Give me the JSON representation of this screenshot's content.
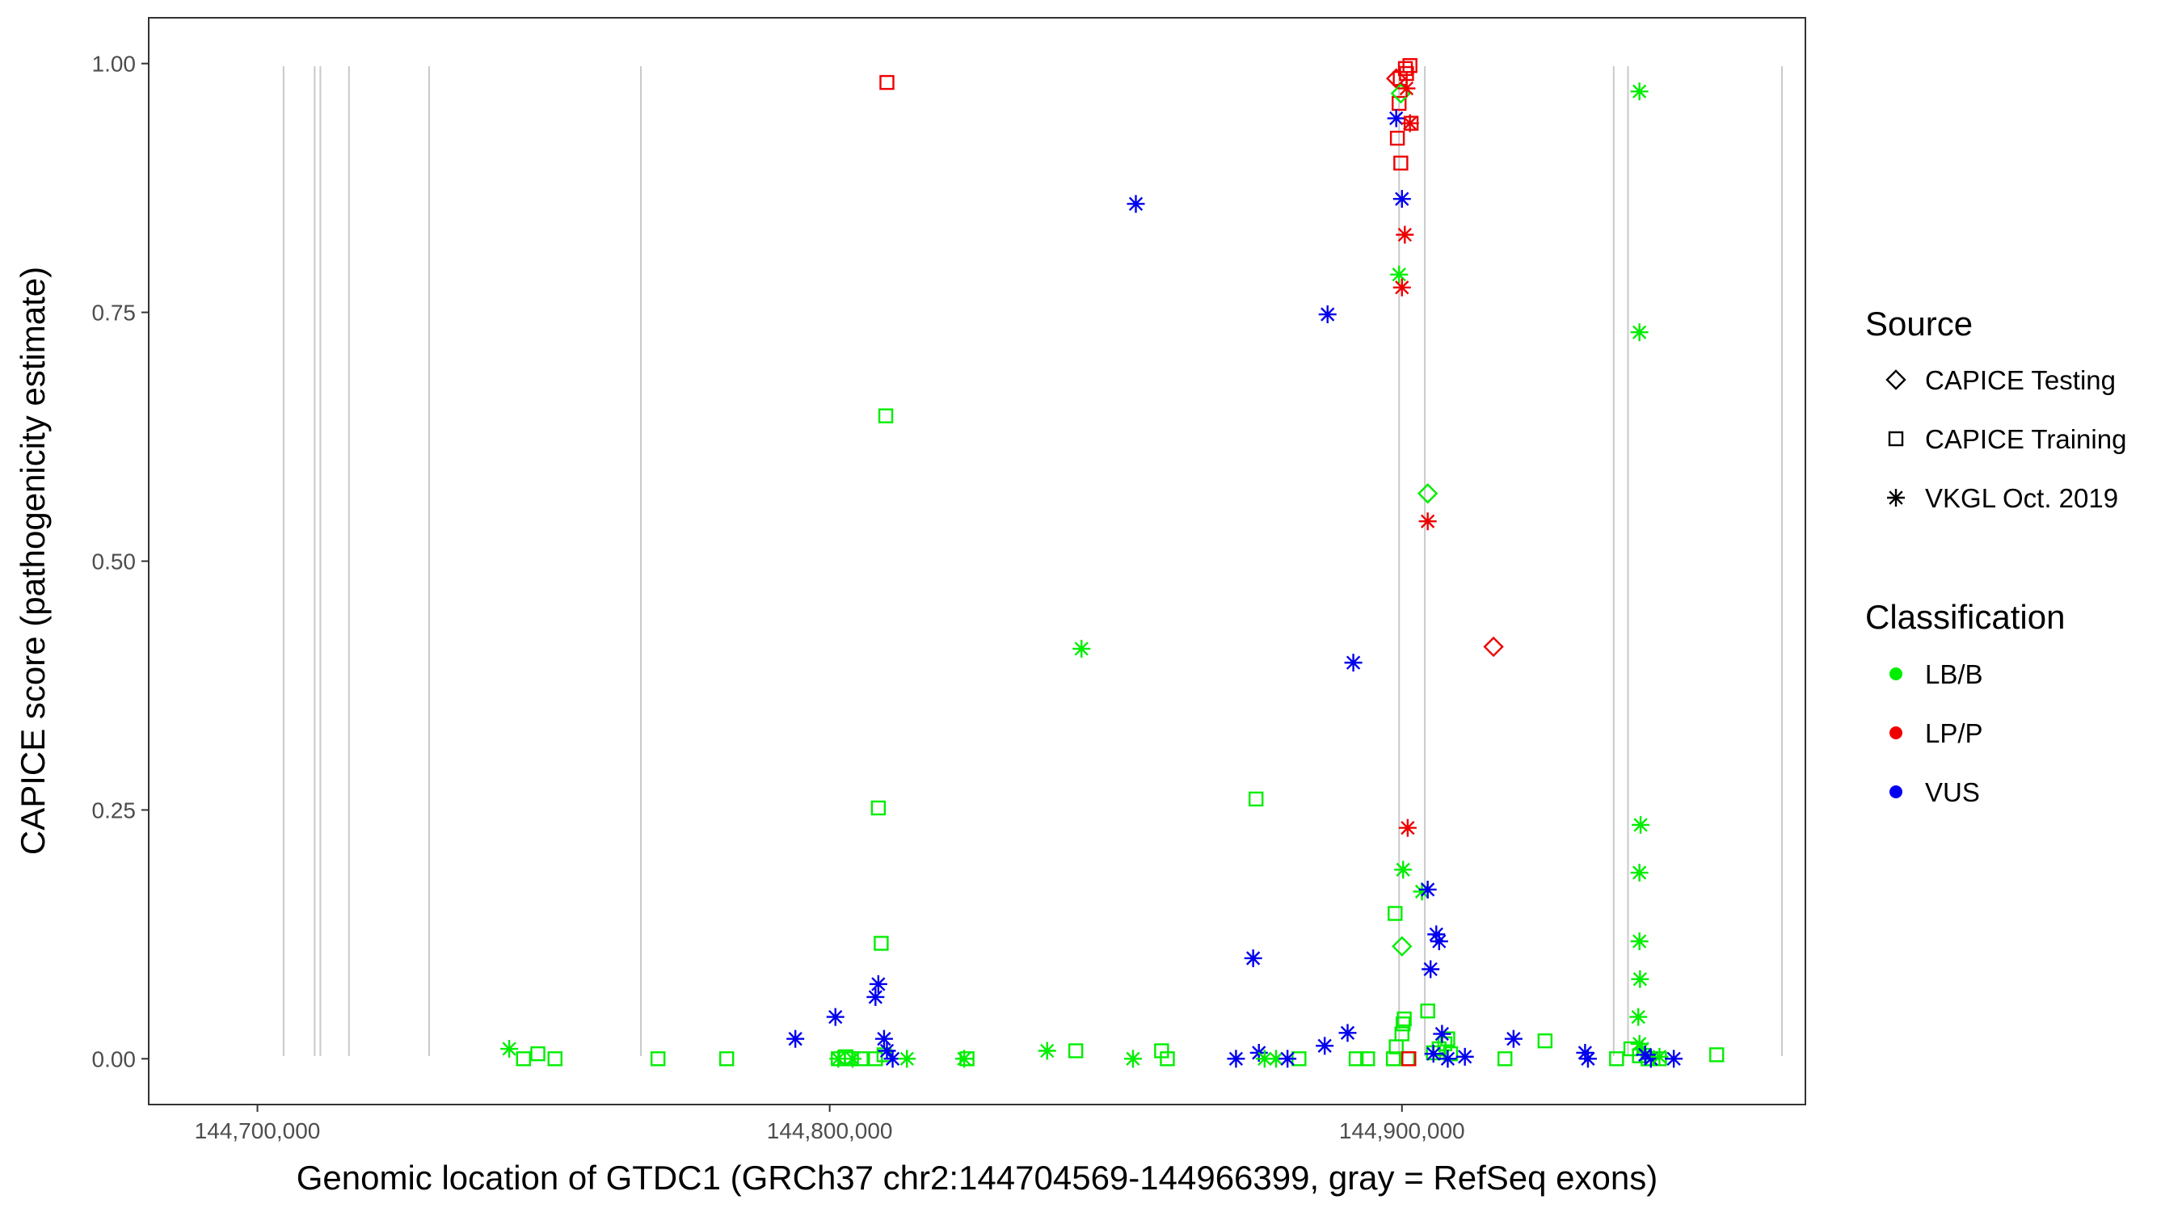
{
  "chart_data": {
    "type": "scatter",
    "title": "",
    "xlabel": "Genomic location of GTDC1 (GRCh37 chr2:144704569-144966399, gray = RefSeq exons)",
    "ylabel": "CAPICE score (pathogenicity estimate)",
    "xlim": [
      144681000,
      144970500
    ],
    "ylim": [
      -0.046,
      1.046
    ],
    "x_ticks": [
      {
        "value": 144700000,
        "label": "144,700,000"
      },
      {
        "value": 144800000,
        "label": "144,800,000"
      },
      {
        "value": 144900000,
        "label": "144,900,000"
      }
    ],
    "y_ticks": [
      {
        "value": 0.0,
        "label": "0.00"
      },
      {
        "value": 0.25,
        "label": "0.25"
      },
      {
        "value": 0.5,
        "label": "0.50"
      },
      {
        "value": 0.75,
        "label": "0.75"
      },
      {
        "value": 1.0,
        "label": "1.00"
      }
    ],
    "grid": false,
    "exons": [
      144704569,
      144710000,
      144711000,
      144716000,
      144730000,
      144767000,
      144899500,
      144904000,
      144937000,
      144939500,
      144966399
    ],
    "legend_position": "right",
    "legend": {
      "source": {
        "title": "Source",
        "entries": [
          {
            "key": "testing",
            "label": "CAPICE Testing",
            "shape": "diamond"
          },
          {
            "key": "training",
            "label": "CAPICE Training",
            "shape": "square"
          },
          {
            "key": "vkgl",
            "label": "VKGL Oct. 2019",
            "shape": "asterisk"
          }
        ]
      },
      "classification": {
        "title": "Classification",
        "entries": [
          {
            "key": "LB/B",
            "label": "LB/B",
            "color": "#00ee00"
          },
          {
            "key": "LP/P",
            "label": "LP/P",
            "color": "#ee0000"
          },
          {
            "key": "VUS",
            "label": "VUS",
            "color": "#0000ee"
          }
        ]
      }
    },
    "series": [
      {
        "name": "CAPICE Training",
        "shape": "square",
        "points": [
          {
            "x": 144746500,
            "y": 0.0,
            "c": "LB/B"
          },
          {
            "x": 144749000,
            "y": 0.005,
            "c": "LB/B"
          },
          {
            "x": 144752000,
            "y": 0.0,
            "c": "LB/B"
          },
          {
            "x": 144770000,
            "y": 0.0,
            "c": "LB/B"
          },
          {
            "x": 144782000,
            "y": 0.0,
            "c": "LB/B"
          },
          {
            "x": 144801500,
            "y": 0.0,
            "c": "LB/B"
          },
          {
            "x": 144802800,
            "y": 0.002,
            "c": "LB/B"
          },
          {
            "x": 144803800,
            "y": 0.0,
            "c": "LB/B"
          },
          {
            "x": 144805500,
            "y": 0.0,
            "c": "LB/B"
          },
          {
            "x": 144808000,
            "y": 0.0,
            "c": "LB/B"
          },
          {
            "x": 144808500,
            "y": 0.252,
            "c": "LB/B"
          },
          {
            "x": 144809000,
            "y": 0.116,
            "c": "LB/B"
          },
          {
            "x": 144809500,
            "y": 0.004,
            "c": "LB/B"
          },
          {
            "x": 144809800,
            "y": 0.646,
            "c": "LB/B"
          },
          {
            "x": 144810000,
            "y": 0.981,
            "c": "LP/P"
          },
          {
            "x": 144824000,
            "y": 0.0,
            "c": "LB/B"
          },
          {
            "x": 144843000,
            "y": 0.008,
            "c": "LB/B"
          },
          {
            "x": 144858000,
            "y": 0.008,
            "c": "LB/B"
          },
          {
            "x": 144859000,
            "y": 0.0,
            "c": "LB/B"
          },
          {
            "x": 144874500,
            "y": 0.261,
            "c": "LB/B"
          },
          {
            "x": 144882000,
            "y": 0.0,
            "c": "LB/B"
          },
          {
            "x": 144892000,
            "y": 0.0,
            "c": "LB/B"
          },
          {
            "x": 144894000,
            "y": 0.0,
            "c": "LB/B"
          },
          {
            "x": 144898500,
            "y": 0.0,
            "c": "LB/B"
          },
          {
            "x": 144898800,
            "y": 0.146,
            "c": "LB/B"
          },
          {
            "x": 144899000,
            "y": 0.012,
            "c": "LB/B"
          },
          {
            "x": 144899200,
            "y": 0.925,
            "c": "LP/P"
          },
          {
            "x": 144899500,
            "y": 0.96,
            "c": "LP/P"
          },
          {
            "x": 144899700,
            "y": 0.985,
            "c": "LP/P"
          },
          {
            "x": 144899800,
            "y": 0.9,
            "c": "LP/P"
          },
          {
            "x": 144900000,
            "y": 0.025,
            "c": "LB/B"
          },
          {
            "x": 144900200,
            "y": 0.035,
            "c": "LB/B"
          },
          {
            "x": 144900400,
            "y": 0.04,
            "c": "LB/B"
          },
          {
            "x": 144900600,
            "y": 0.995,
            "c": "LP/P"
          },
          {
            "x": 144900800,
            "y": 0.99,
            "c": "LP/P"
          },
          {
            "x": 144901000,
            "y": 0.0,
            "c": "LB/B"
          },
          {
            "x": 144901200,
            "y": 0.0,
            "c": "LP/P"
          },
          {
            "x": 144901400,
            "y": 0.998,
            "c": "LP/P"
          },
          {
            "x": 144901600,
            "y": 0.94,
            "c": "LP/P"
          },
          {
            "x": 144904500,
            "y": 0.048,
            "c": "LB/B"
          },
          {
            "x": 144905500,
            "y": 0.006,
            "c": "LB/B"
          },
          {
            "x": 144906500,
            "y": 0.01,
            "c": "LB/B"
          },
          {
            "x": 144907500,
            "y": 0.015,
            "c": "LB/B"
          },
          {
            "x": 144908000,
            "y": 0.02,
            "c": "LB/B"
          },
          {
            "x": 144908500,
            "y": 0.005,
            "c": "LB/B"
          },
          {
            "x": 144918000,
            "y": 0.0,
            "c": "LB/B"
          },
          {
            "x": 144925000,
            "y": 0.018,
            "c": "LB/B"
          },
          {
            "x": 144937500,
            "y": 0.0,
            "c": "LB/B"
          },
          {
            "x": 144940000,
            "y": 0.01,
            "c": "LB/B"
          },
          {
            "x": 144941500,
            "y": 0.003,
            "c": "LB/B"
          },
          {
            "x": 144943000,
            "y": 0.0,
            "c": "LB/B"
          },
          {
            "x": 144945000,
            "y": 0.0,
            "c": "LB/B"
          },
          {
            "x": 144955000,
            "y": 0.004,
            "c": "LB/B"
          }
        ]
      },
      {
        "name": "CAPICE Testing",
        "shape": "diamond",
        "points": [
          {
            "x": 144899000,
            "y": 0.985,
            "c": "LP/P"
          },
          {
            "x": 144899800,
            "y": 0.97,
            "c": "LB/B"
          },
          {
            "x": 144900000,
            "y": 0.113,
            "c": "LB/B"
          },
          {
            "x": 144904500,
            "y": 0.568,
            "c": "LB/B"
          },
          {
            "x": 144916000,
            "y": 0.414,
            "c": "LP/P"
          }
        ]
      },
      {
        "name": "VKGL Oct. 2019",
        "shape": "asterisk",
        "points": [
          {
            "x": 144744000,
            "y": 0.01,
            "c": "LB/B"
          },
          {
            "x": 144794000,
            "y": 0.02,
            "c": "VUS"
          },
          {
            "x": 144801000,
            "y": 0.042,
            "c": "VUS"
          },
          {
            "x": 144801500,
            "y": 0.0,
            "c": "LB/B"
          },
          {
            "x": 144804000,
            "y": 0.0,
            "c": "LB/B"
          },
          {
            "x": 144808000,
            "y": 0.062,
            "c": "VUS"
          },
          {
            "x": 144808500,
            "y": 0.075,
            "c": "VUS"
          },
          {
            "x": 144809500,
            "y": 0.02,
            "c": "VUS"
          },
          {
            "x": 144810000,
            "y": 0.008,
            "c": "VUS"
          },
          {
            "x": 144811000,
            "y": 0.0,
            "c": "VUS"
          },
          {
            "x": 144813500,
            "y": 0.0,
            "c": "LB/B"
          },
          {
            "x": 144823500,
            "y": 0.0,
            "c": "LB/B"
          },
          {
            "x": 144838000,
            "y": 0.008,
            "c": "LB/B"
          },
          {
            "x": 144844000,
            "y": 0.412,
            "c": "LB/B"
          },
          {
            "x": 144853000,
            "y": 0.0,
            "c": "LB/B"
          },
          {
            "x": 144853500,
            "y": 0.859,
            "c": "VUS"
          },
          {
            "x": 144871000,
            "y": 0.0,
            "c": "VUS"
          },
          {
            "x": 144875000,
            "y": 0.006,
            "c": "VUS"
          },
          {
            "x": 144876000,
            "y": 0.0,
            "c": "LB/B"
          },
          {
            "x": 144878000,
            "y": 0.0,
            "c": "LB/B"
          },
          {
            "x": 144880000,
            "y": 0.0,
            "c": "VUS"
          },
          {
            "x": 144874000,
            "y": 0.101,
            "c": "VUS"
          },
          {
            "x": 144886500,
            "y": 0.013,
            "c": "VUS"
          },
          {
            "x": 144887000,
            "y": 0.748,
            "c": "VUS"
          },
          {
            "x": 144890500,
            "y": 0.026,
            "c": "VUS"
          },
          {
            "x": 144891500,
            "y": 0.398,
            "c": "VUS"
          },
          {
            "x": 144899000,
            "y": 0.945,
            "c": "VUS"
          },
          {
            "x": 144899500,
            "y": 0.788,
            "c": "LB/B"
          },
          {
            "x": 144900000,
            "y": 0.864,
            "c": "VUS"
          },
          {
            "x": 144900000,
            "y": 0.775,
            "c": "LP/P"
          },
          {
            "x": 144900200,
            "y": 0.19,
            "c": "LB/B"
          },
          {
            "x": 144900500,
            "y": 0.828,
            "c": "LP/P"
          },
          {
            "x": 144900800,
            "y": 0.975,
            "c": "LP/P"
          },
          {
            "x": 144901000,
            "y": 0.232,
            "c": "LP/P"
          },
          {
            "x": 144901400,
            "y": 0.94,
            "c": "LP/P"
          },
          {
            "x": 144903500,
            "y": 0.168,
            "c": "LB/B"
          },
          {
            "x": 144904500,
            "y": 0.54,
            "c": "LP/P"
          },
          {
            "x": 144904500,
            "y": 0.17,
            "c": "VUS"
          },
          {
            "x": 144905000,
            "y": 0.09,
            "c": "VUS"
          },
          {
            "x": 144905500,
            "y": 0.005,
            "c": "VUS"
          },
          {
            "x": 144906000,
            "y": 0.125,
            "c": "VUS"
          },
          {
            "x": 144906500,
            "y": 0.118,
            "c": "VUS"
          },
          {
            "x": 144907000,
            "y": 0.025,
            "c": "VUS"
          },
          {
            "x": 144908000,
            "y": 0.0,
            "c": "VUS"
          },
          {
            "x": 144911000,
            "y": 0.002,
            "c": "VUS"
          },
          {
            "x": 144919500,
            "y": 0.02,
            "c": "VUS"
          },
          {
            "x": 144932000,
            "y": 0.006,
            "c": "VUS"
          },
          {
            "x": 144932500,
            "y": 0.0,
            "c": "VUS"
          },
          {
            "x": 144941500,
            "y": 0.972,
            "c": "LB/B"
          },
          {
            "x": 144941500,
            "y": 0.73,
            "c": "LB/B"
          },
          {
            "x": 144941700,
            "y": 0.235,
            "c": "LB/B"
          },
          {
            "x": 144941500,
            "y": 0.187,
            "c": "LB/B"
          },
          {
            "x": 144941500,
            "y": 0.118,
            "c": "LB/B"
          },
          {
            "x": 144941600,
            "y": 0.08,
            "c": "LB/B"
          },
          {
            "x": 144941300,
            "y": 0.042,
            "c": "LB/B"
          },
          {
            "x": 144941500,
            "y": 0.015,
            "c": "LB/B"
          },
          {
            "x": 144942000,
            "y": 0.01,
            "c": "LB/B"
          },
          {
            "x": 144942500,
            "y": 0.004,
            "c": "VUS"
          },
          {
            "x": 144943500,
            "y": 0.0,
            "c": "VUS"
          },
          {
            "x": 144945000,
            "y": 0.002,
            "c": "LB/B"
          },
          {
            "x": 144947500,
            "y": 0.0,
            "c": "VUS"
          }
        ]
      }
    ]
  }
}
